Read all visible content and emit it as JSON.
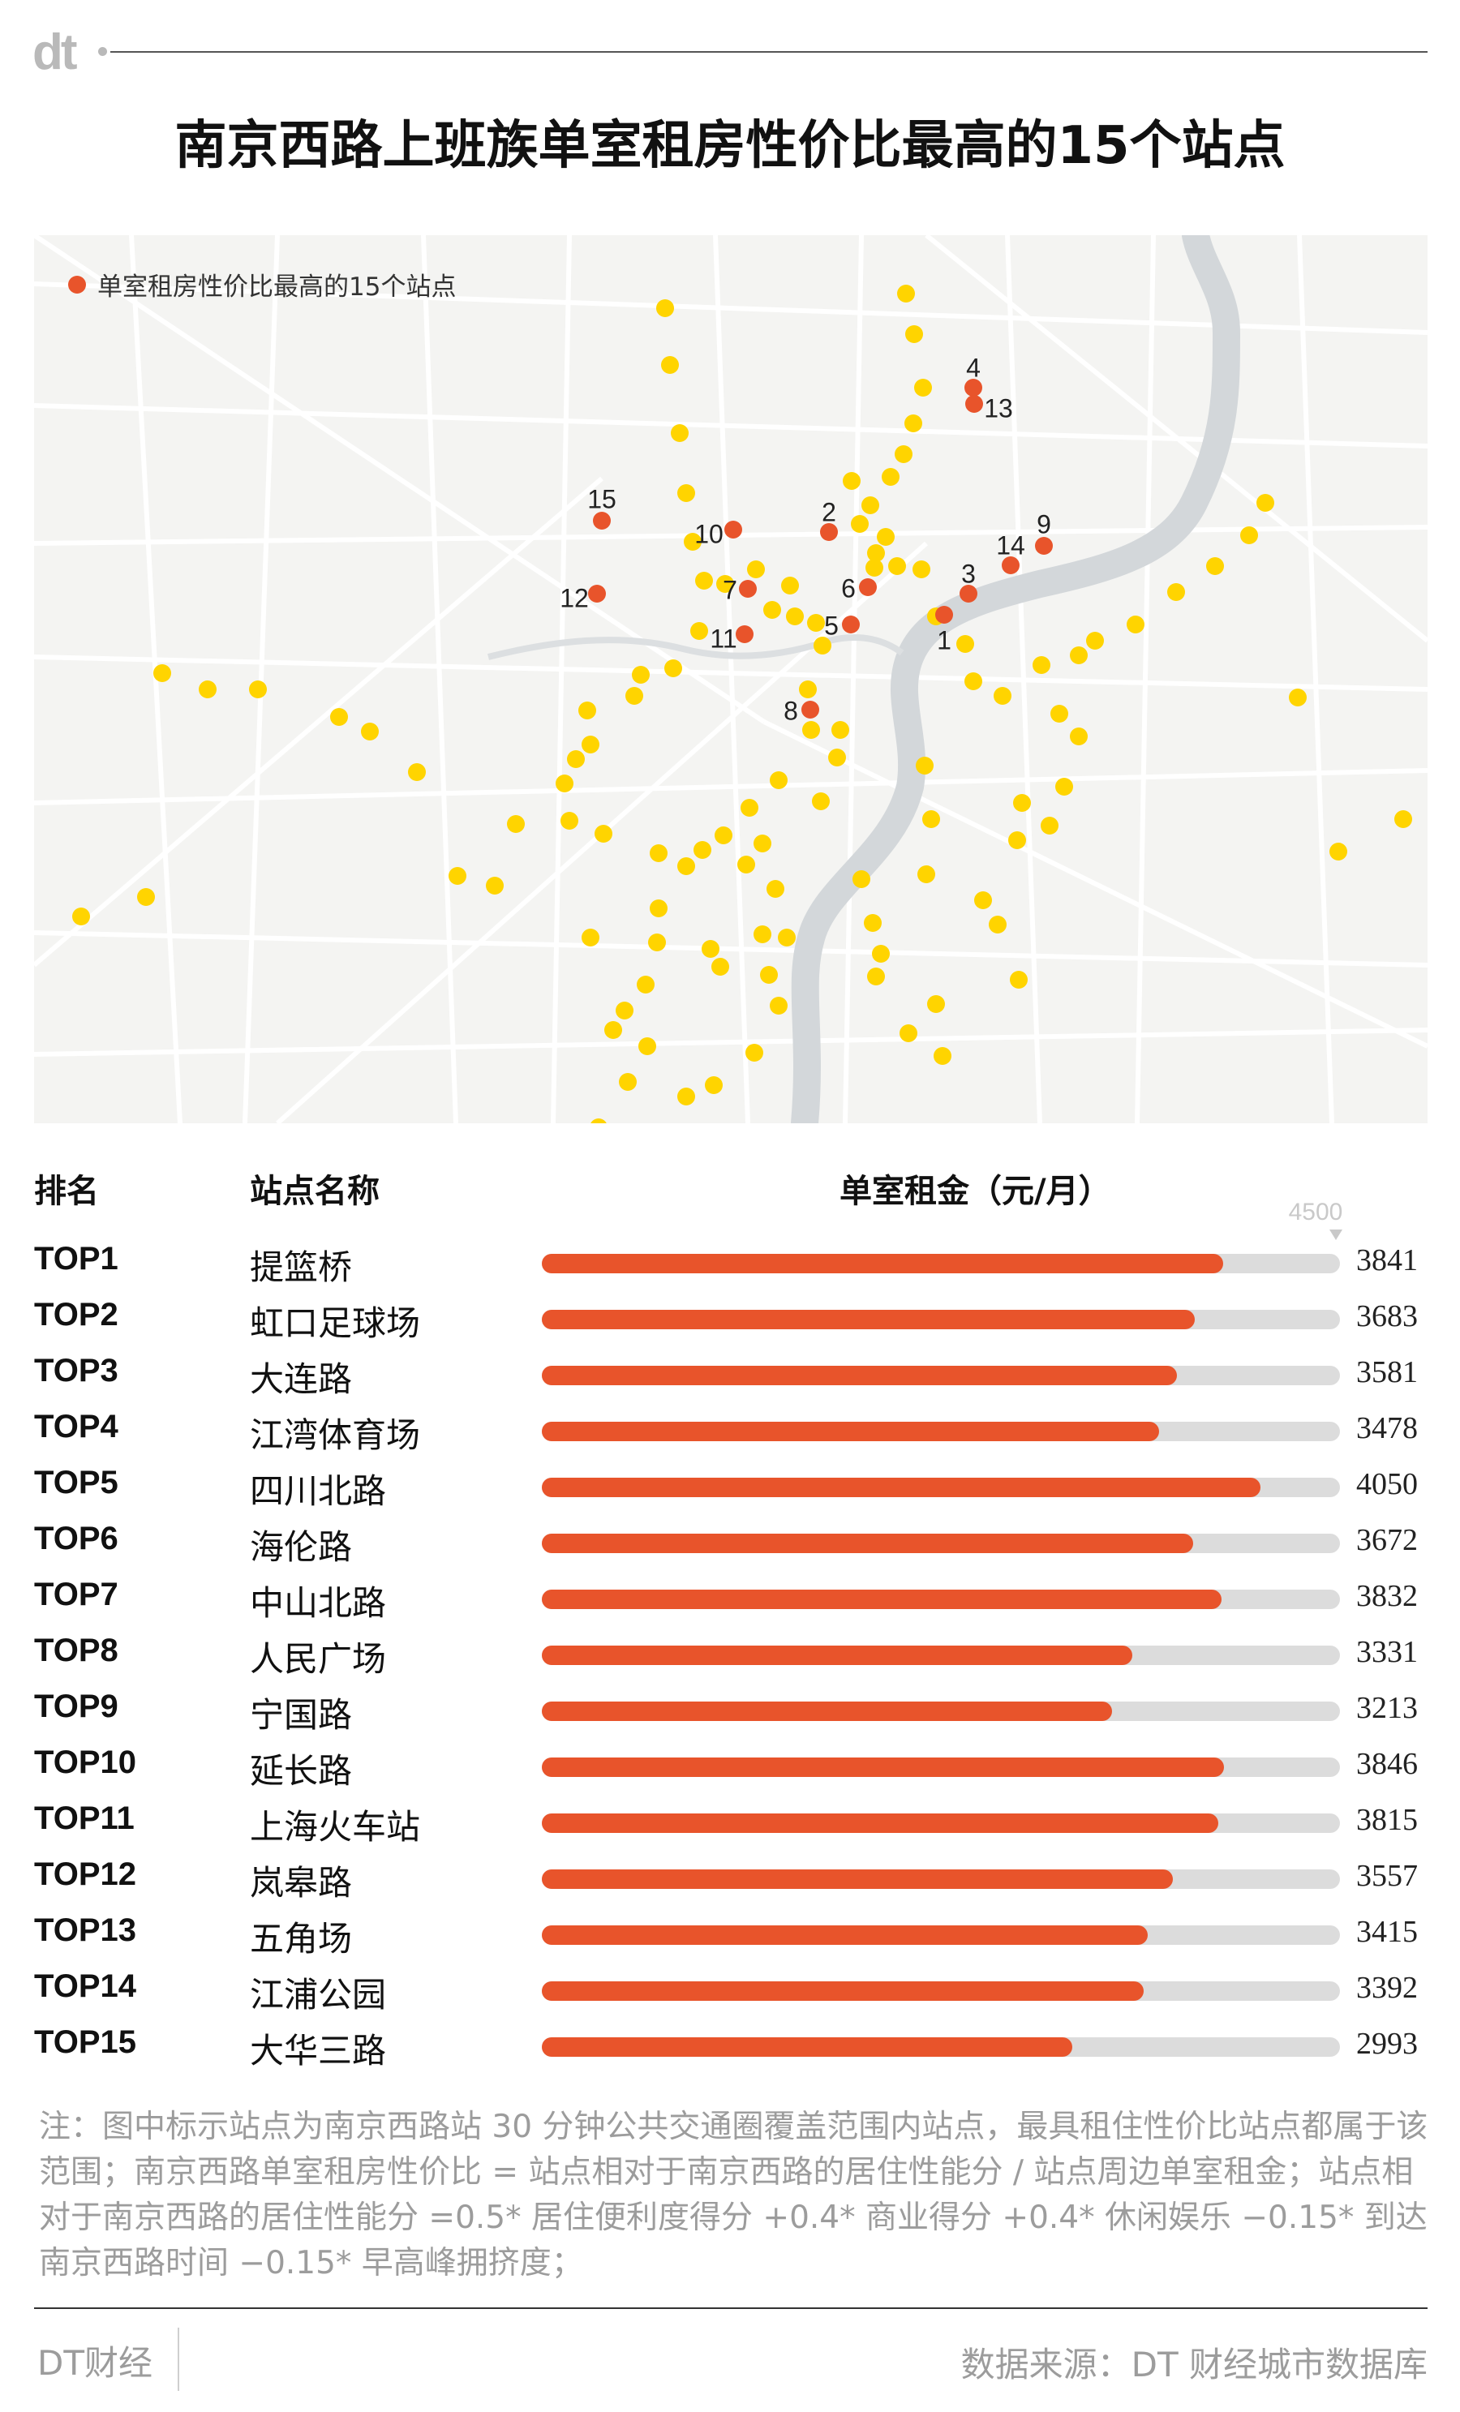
{
  "brand_logo": "dt",
  "title": "南京西路上班族单室租房性价比最高的15个站点",
  "map": {
    "legend_label": "单室租房性价比最高的15个站点",
    "colors": {
      "top15": "#e8542b",
      "station": "#ffd400",
      "river": "#cfd3d6",
      "road": "#ffffff",
      "land": "#f4f4f2"
    },
    "top15_labels": [
      "1",
      "2",
      "3",
      "4",
      "5",
      "6",
      "7",
      "8",
      "9",
      "10",
      "11",
      "12",
      "13",
      "14",
      "15"
    ]
  },
  "table": {
    "col_rank": "排名",
    "col_station": "站点名称",
    "col_rent": "单室租金（元/月）",
    "max_marker": "4500"
  },
  "chart_data": {
    "type": "bar",
    "title": "南京西路上班族单室租房性价比最高的15个站点",
    "ylabel": "单室租金（元/月）",
    "ylim": [
      0,
      4500
    ],
    "bar_color": "#e8542b",
    "track_color": "#dcdcdc",
    "rows": [
      {
        "rank": "TOP1",
        "station": "提篮桥",
        "value": 3841
      },
      {
        "rank": "TOP2",
        "station": "虹口足球场",
        "value": 3683
      },
      {
        "rank": "TOP3",
        "station": "大连路",
        "value": 3581
      },
      {
        "rank": "TOP4",
        "station": "江湾体育场",
        "value": 3478
      },
      {
        "rank": "TOP5",
        "station": "四川北路",
        "value": 4050
      },
      {
        "rank": "TOP6",
        "station": "海伦路",
        "value": 3672
      },
      {
        "rank": "TOP7",
        "station": "中山北路",
        "value": 3832
      },
      {
        "rank": "TOP8",
        "station": "人民广场",
        "value": 3331
      },
      {
        "rank": "TOP9",
        "station": "宁国路",
        "value": 3213
      },
      {
        "rank": "TOP10",
        "station": "延长路",
        "value": 3846
      },
      {
        "rank": "TOP11",
        "station": "上海火车站",
        "value": 3815
      },
      {
        "rank": "TOP12",
        "station": "岚皋路",
        "value": 3557
      },
      {
        "rank": "TOP13",
        "station": "五角场",
        "value": 3415
      },
      {
        "rank": "TOP14",
        "station": "江浦公园",
        "value": 3392
      },
      {
        "rank": "TOP15",
        "station": "大华三路",
        "value": 2993
      }
    ]
  },
  "note": "注：图中标示站点为南京西路站 30 分钟公共交通圈覆盖范围内站点，最具租住性价比站点都属于该范围；南京西路单室租房性价比 = 站点相对于南京西路的居住性能分 / 站点周边单室租金；站点相对于南京西路的居住性能分 =0.5* 居住便利度得分 +0.4* 商业得分 +0.4* 休闲娱乐 −0.15* 到达南京西路时间 −0.15* 早高峰拥挤度；",
  "footer": {
    "brand": "DT财经",
    "source": "数据来源：DT 财经城市数据库"
  }
}
